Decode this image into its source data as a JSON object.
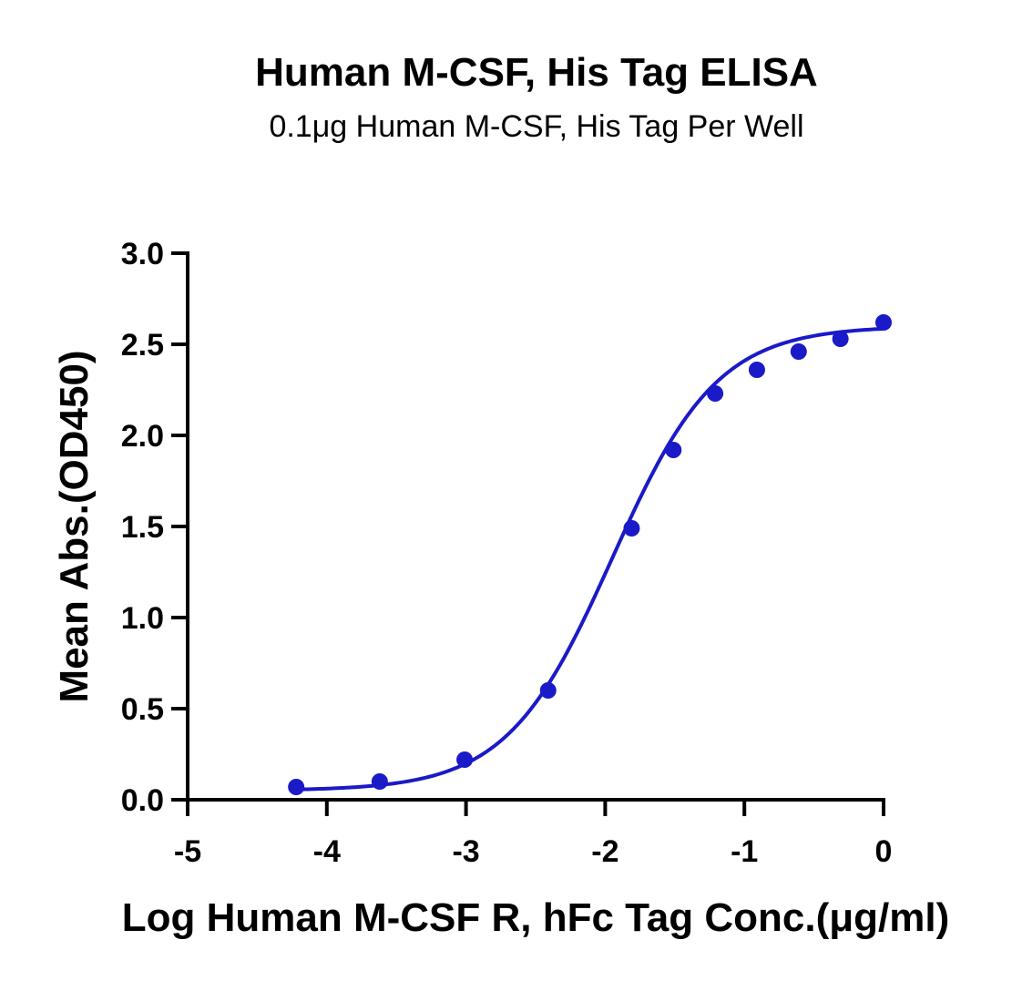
{
  "chart_data": {
    "type": "scatter",
    "title": "Human M-CSF, His Tag ELISA",
    "subtitle": "0.1μg Human M-CSF, His Tag Per Well",
    "xlabel": "Log Human M-CSF R, hFc Tag Conc.(μg/ml)",
    "ylabel": "Mean Abs.(OD450)",
    "xlim": [
      -5,
      0
    ],
    "ylim": [
      0,
      3.0
    ],
    "x_ticks": [
      -5,
      -4,
      -3,
      -2,
      -1,
      0
    ],
    "x_tick_labels": [
      "-5",
      "-4",
      "-3",
      "-2",
      "-1",
      "0"
    ],
    "y_ticks": [
      0,
      0.5,
      1.0,
      1.5,
      2.0,
      2.5,
      3.0
    ],
    "y_tick_labels": [
      "0.0",
      "0.5",
      "1.0",
      "1.5",
      "2.0",
      "2.5",
      "3.0"
    ],
    "grid": false,
    "legend": "none",
    "colors": {
      "series": "#1a1ac8",
      "axis": "#000000"
    },
    "series": [
      {
        "points": [
          {
            "x": -4.22,
            "y": 0.07
          },
          {
            "x": -3.62,
            "y": 0.1
          },
          {
            "x": -3.01,
            "y": 0.22
          },
          {
            "x": -2.41,
            "y": 0.6
          },
          {
            "x": -1.81,
            "y": 1.49
          },
          {
            "x": -1.51,
            "y": 1.92
          },
          {
            "x": -1.21,
            "y": 2.23
          },
          {
            "x": -0.91,
            "y": 2.36
          },
          {
            "x": -0.61,
            "y": 2.46
          },
          {
            "x": -0.31,
            "y": 2.53
          },
          {
            "x": 0.0,
            "y": 2.62
          }
        ],
        "fit": {
          "model": "4PL",
          "bottom": 0.05,
          "top": 2.6,
          "logEC50": -1.95,
          "hill": 1.15,
          "x_range": [
            -4.22,
            0.0
          ]
        }
      }
    ]
  }
}
